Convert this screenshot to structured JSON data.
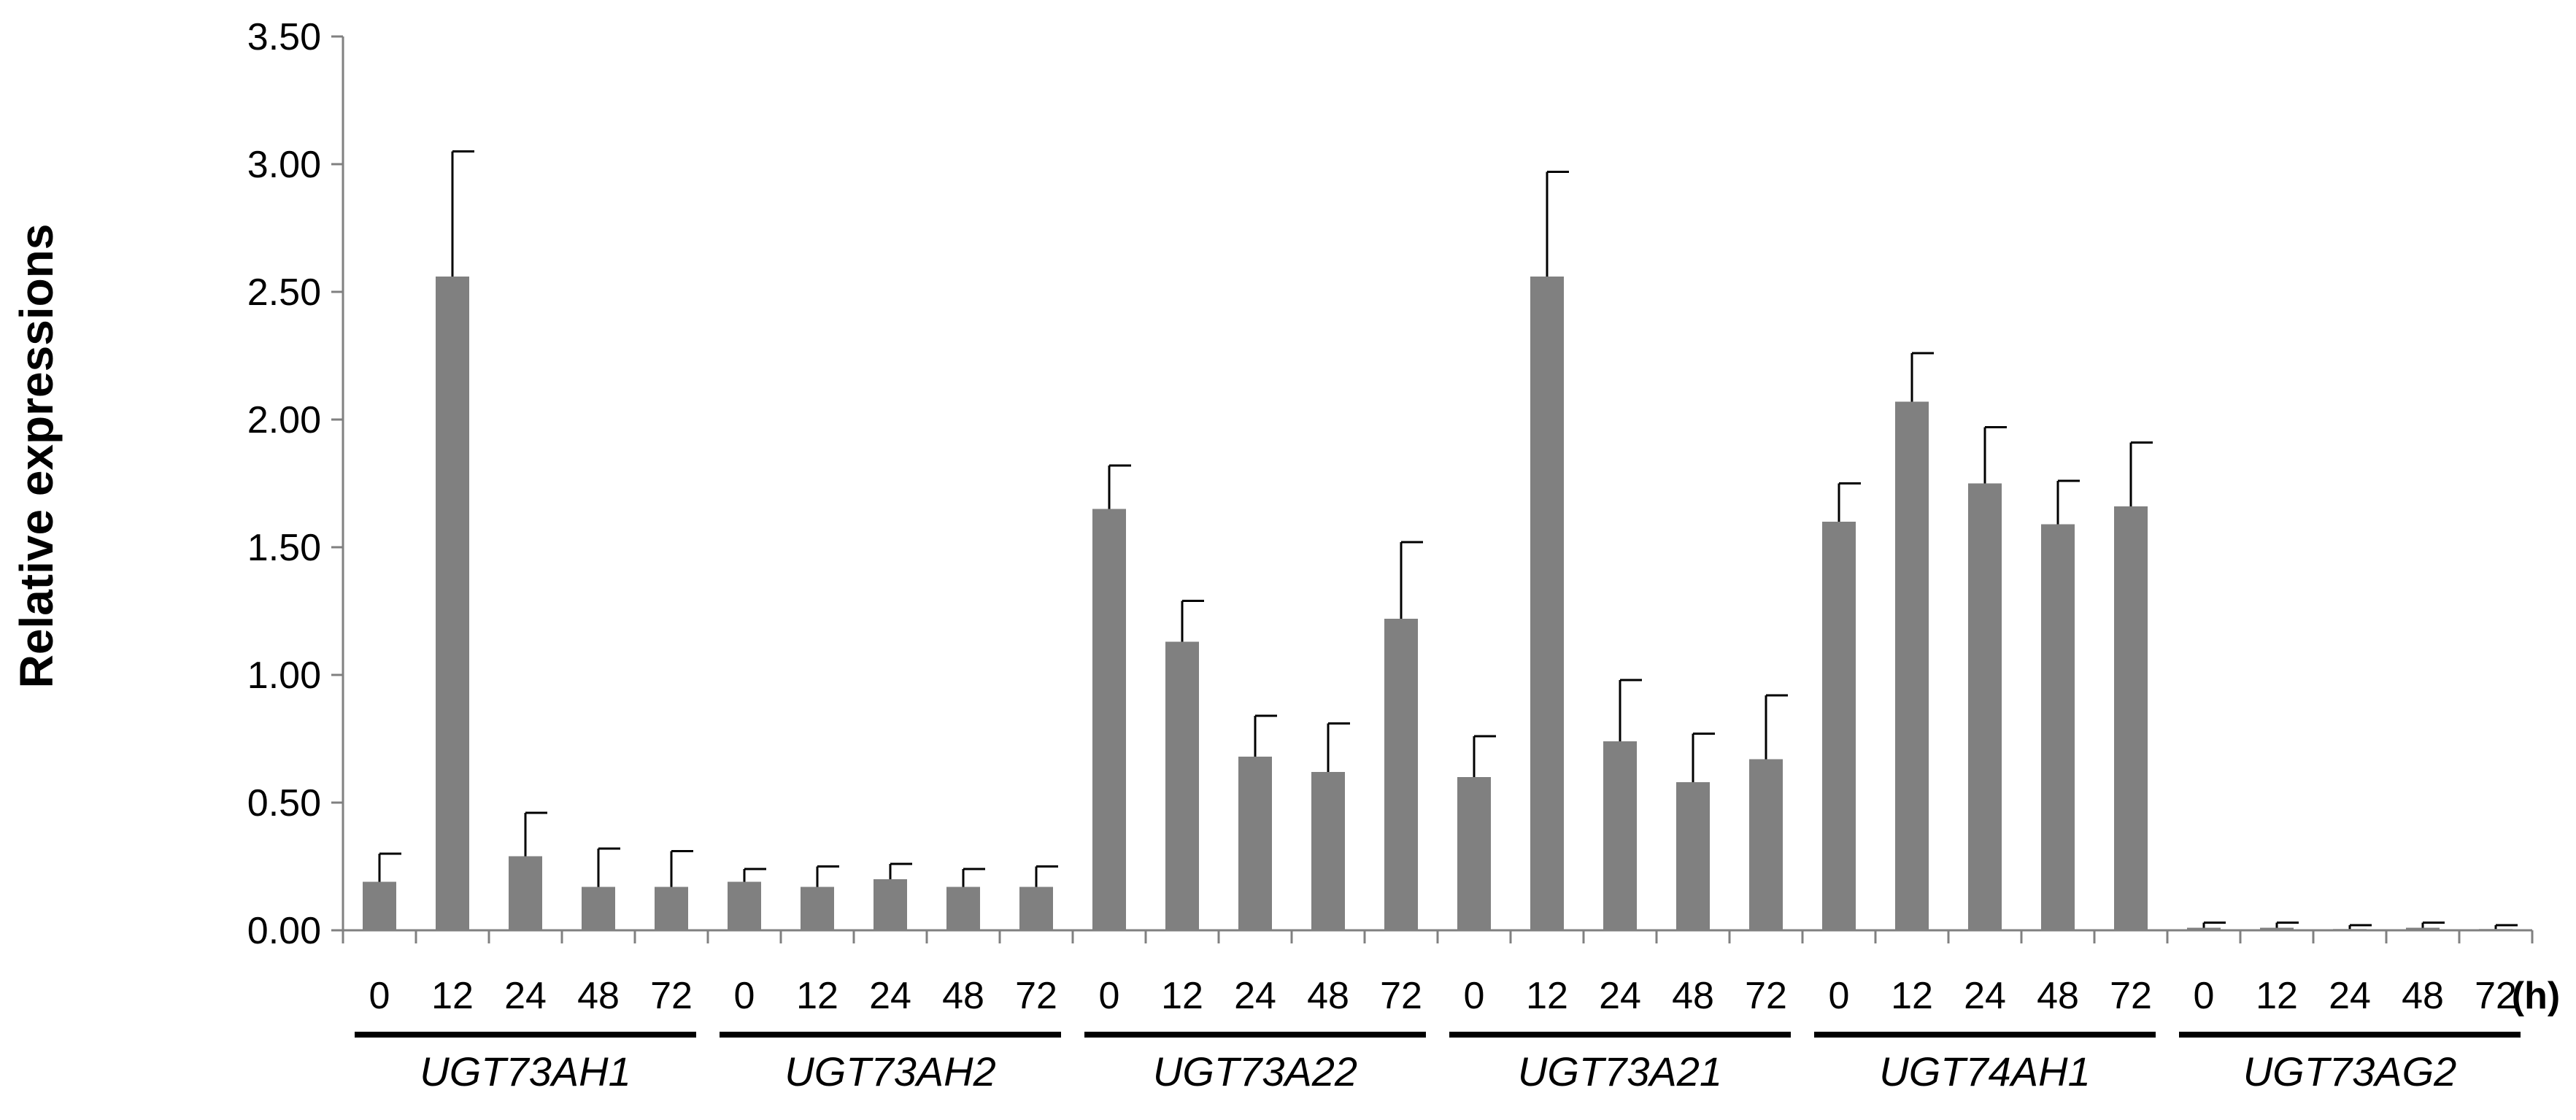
{
  "chart_data": {
    "type": "bar",
    "ylabel": "Relative expressions",
    "xlabel": "",
    "unit_label": "(h)",
    "ylim": [
      0,
      3.5
    ],
    "yticks": [
      "0.00",
      "0.50",
      "1.00",
      "1.50",
      "2.00",
      "2.50",
      "3.00",
      "3.50"
    ],
    "grid": false,
    "bar_color": "#808080",
    "time_points": [
      "0",
      "12",
      "24",
      "48",
      "72"
    ],
    "groups": [
      {
        "name": "UGT73AH1",
        "values": [
          0.19,
          2.56,
          0.29,
          0.17,
          0.17
        ],
        "errors": [
          0.11,
          0.49,
          0.17,
          0.15,
          0.14
        ]
      },
      {
        "name": "UGT73AH2",
        "values": [
          0.19,
          0.17,
          0.2,
          0.17,
          0.17
        ],
        "errors": [
          0.05,
          0.08,
          0.06,
          0.07,
          0.08
        ]
      },
      {
        "name": "UGT73A22",
        "values": [
          1.65,
          1.13,
          0.68,
          0.62,
          1.22
        ],
        "errors": [
          0.17,
          0.16,
          0.16,
          0.19,
          0.3
        ]
      },
      {
        "name": "UGT73A21",
        "values": [
          0.6,
          2.56,
          0.74,
          0.58,
          0.67
        ],
        "errors": [
          0.16,
          0.41,
          0.24,
          0.19,
          0.25
        ]
      },
      {
        "name": "UGT74AH1",
        "values": [
          1.6,
          2.07,
          1.75,
          1.59,
          1.66
        ],
        "errors": [
          0.15,
          0.19,
          0.22,
          0.17,
          0.25
        ]
      },
      {
        "name": "UGT73AG2",
        "values": [
          0.01,
          0.01,
          0.005,
          0.01,
          0.005
        ],
        "errors": [
          0.02,
          0.02,
          0.015,
          0.02,
          0.015
        ]
      }
    ]
  }
}
